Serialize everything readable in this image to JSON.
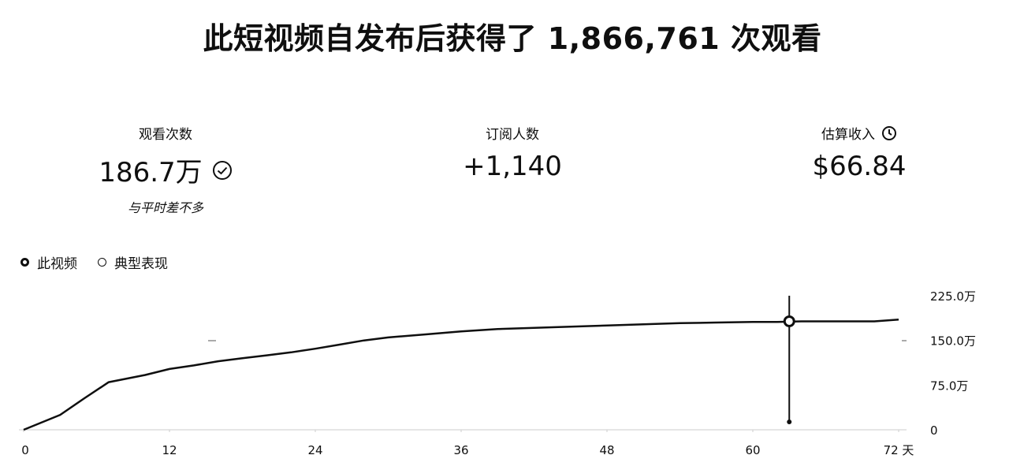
{
  "title": "此短视频自发布后获得了 1,866,761 次观看",
  "metrics": {
    "views": {
      "label": "观看次数",
      "value": "186.7万",
      "note": "与平时差不多",
      "icon": "check-circle-icon"
    },
    "subscribers": {
      "label": "订阅人数",
      "value": "+1,140"
    },
    "revenue": {
      "label": "估算收入",
      "value": "$66.84",
      "icon": "clock-icon"
    }
  },
  "legend": {
    "this_video": "此视频",
    "typical": "典型表现"
  },
  "chart_data": {
    "type": "line",
    "x_unit": "天",
    "xlim": [
      0,
      72
    ],
    "ylim": [
      0,
      225
    ],
    "x_ticks": [
      "0",
      "12",
      "24",
      "36",
      "48",
      "60",
      "72 天"
    ],
    "x_tick_values": [
      0,
      12,
      24,
      36,
      48,
      60,
      72
    ],
    "y_ticks": [
      "0",
      "75.0万",
      "150.0万",
      "225.0万"
    ],
    "y_tick_values": [
      0,
      75,
      150,
      225
    ],
    "series": [
      {
        "name": "此视频",
        "x": [
          0,
          3,
          5,
          7,
          10,
          12,
          14,
          16,
          18,
          20,
          22,
          24,
          26,
          28,
          30,
          33,
          36,
          39,
          42,
          45,
          48,
          51,
          54,
          57,
          60,
          62,
          64,
          66,
          68,
          70,
          72
        ],
        "y": [
          0,
          25,
          53,
          80,
          92,
          102,
          108,
          115,
          120,
          125,
          130,
          136,
          143,
          150,
          155,
          160,
          165,
          169,
          171,
          173,
          175,
          177,
          179,
          180,
          181,
          181,
          182,
          182,
          182,
          182,
          185
        ]
      }
    ],
    "marker": {
      "x": 63,
      "y": 182
    }
  },
  "colors": {
    "line": "#0f0f0f",
    "text": "#0f0f0f",
    "background": "#ffffff"
  }
}
